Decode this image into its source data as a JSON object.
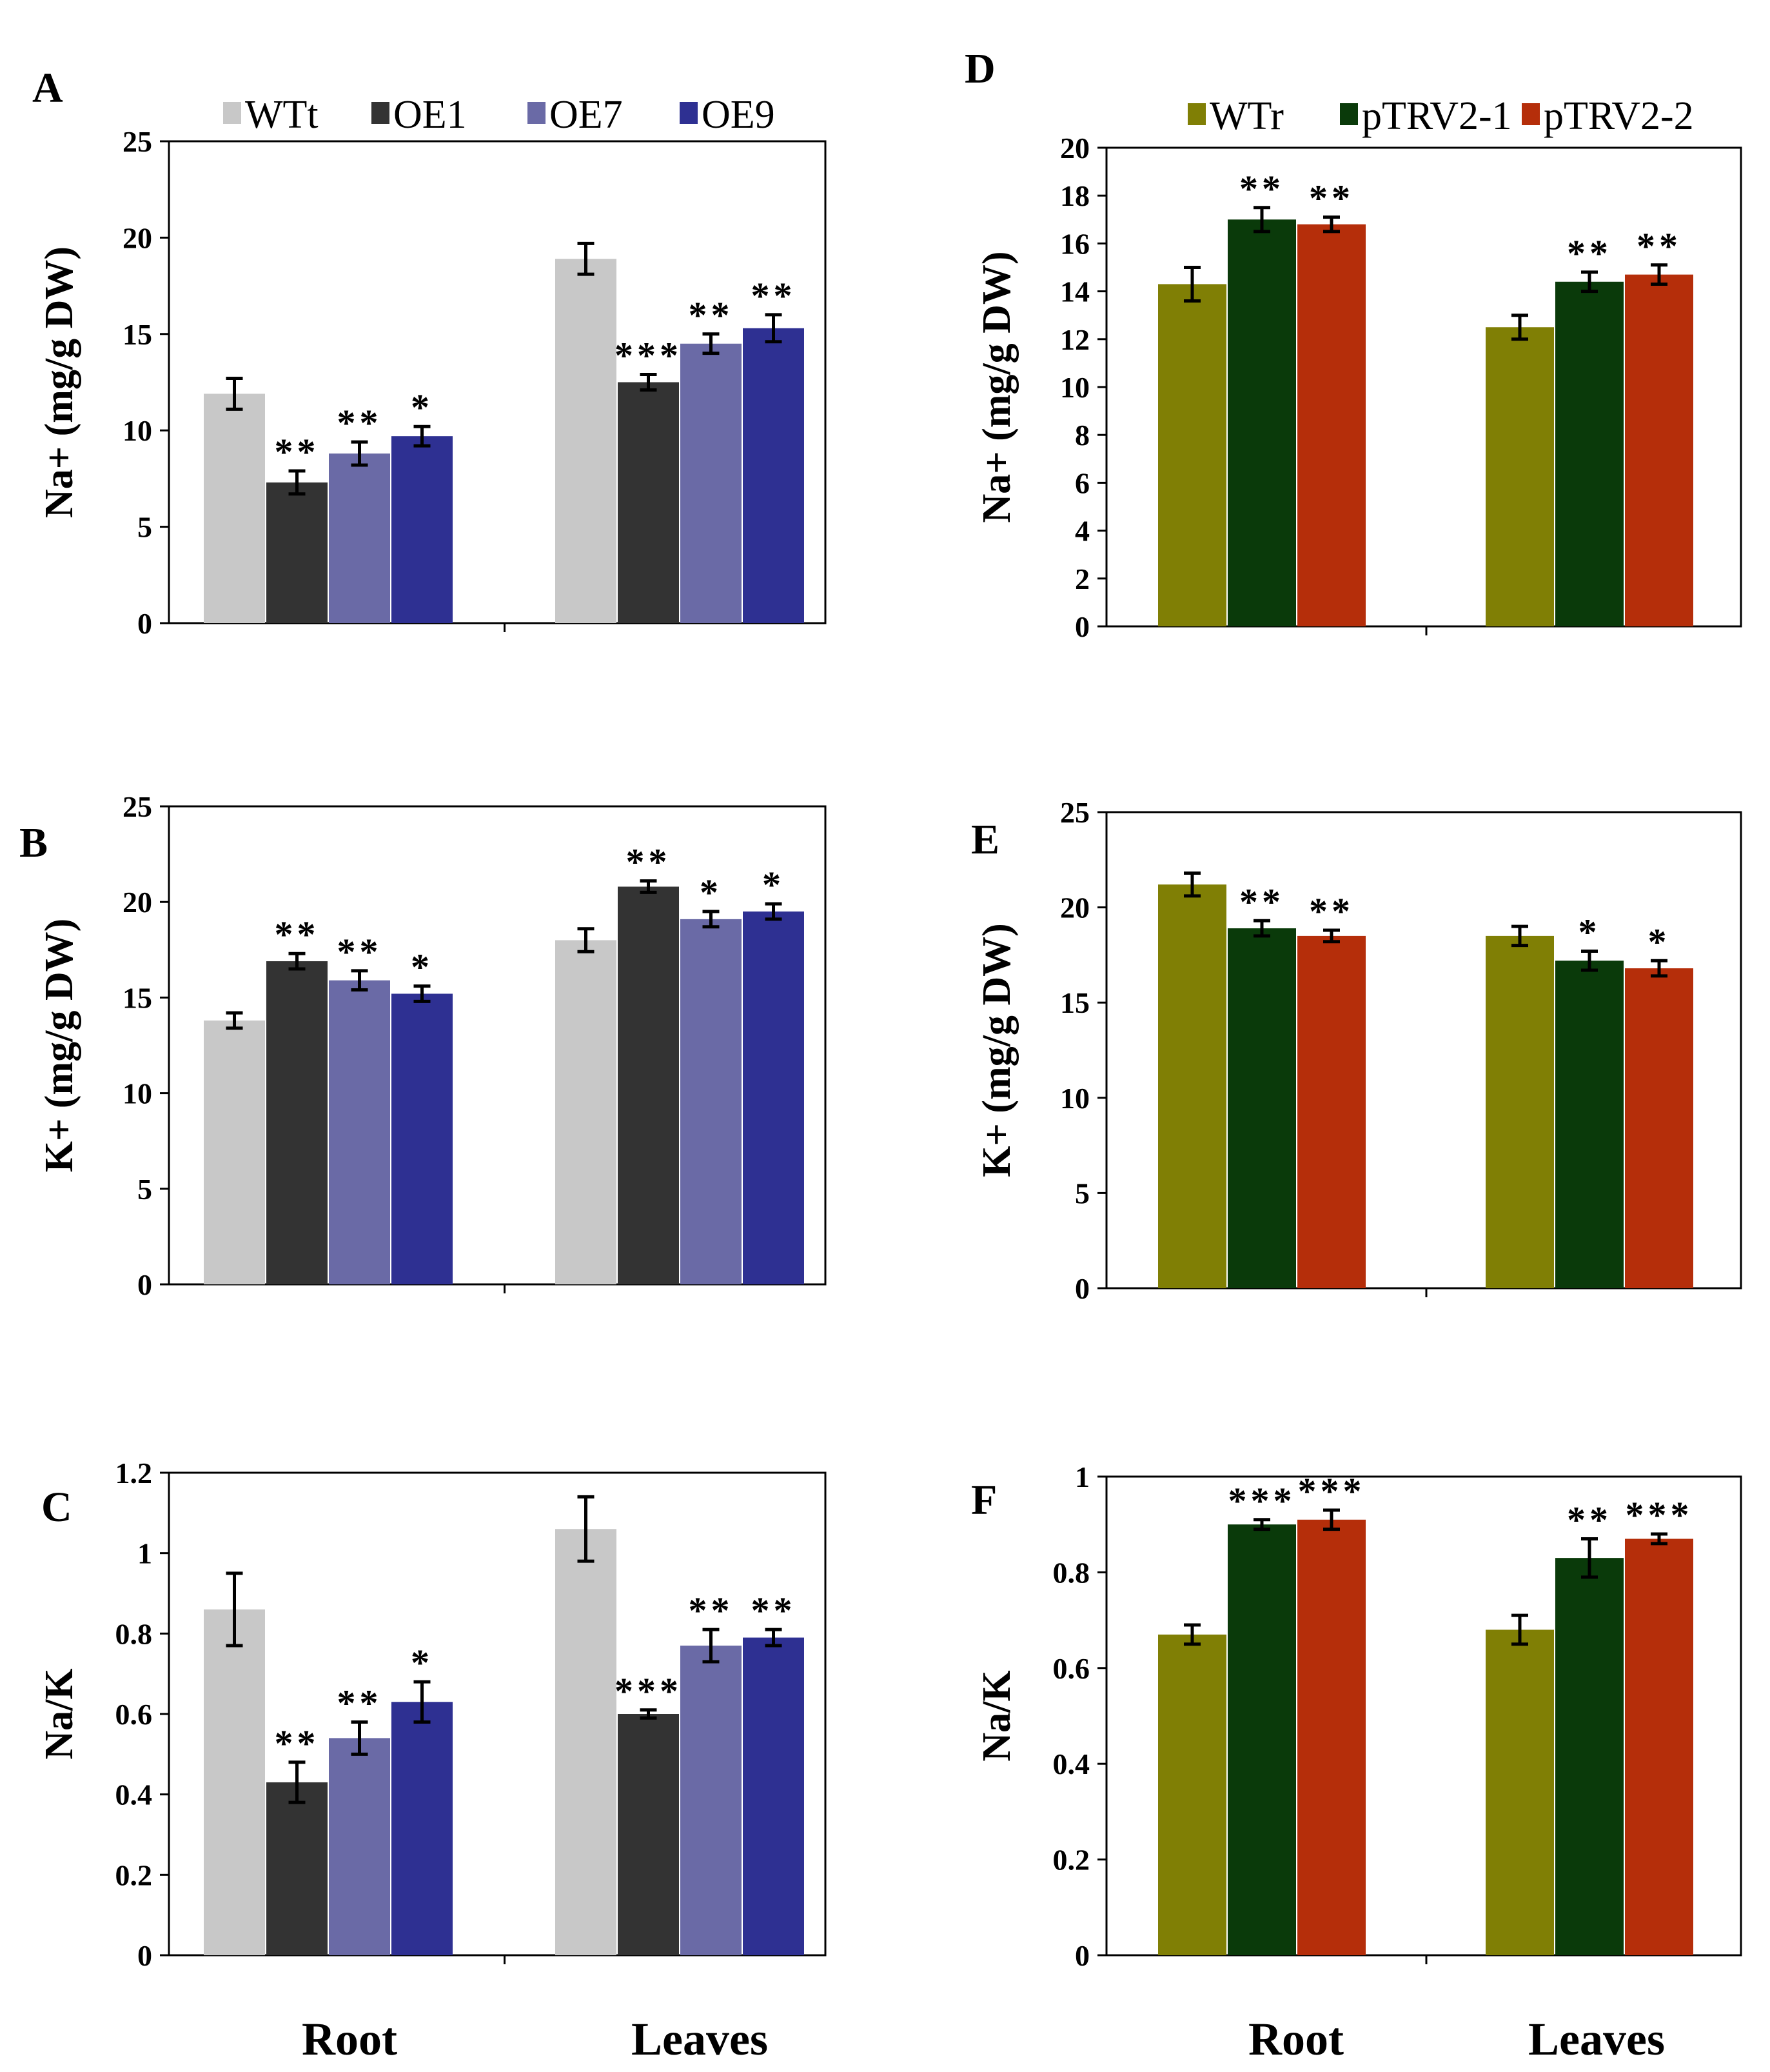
{
  "colors": {
    "WTt": "#c8c8c8",
    "OE1": "#333333",
    "OE7": "#6a6aa6",
    "OE9": "#2e3092",
    "WTr": "#807f05",
    "pTRV2-1": "#0a3a0a",
    "pTRV2-2": "#b52e0a"
  },
  "legend_left": {
    "entries": [
      "WTt",
      "OE1",
      "OE7",
      "OE9"
    ]
  },
  "legend_right": {
    "entries": [
      "WTr",
      "pTRV2-1",
      "pTRV2-2"
    ]
  },
  "x_labels_left": [
    "Root",
    "Leaves"
  ],
  "x_labels_right": [
    "Root",
    "Leaves"
  ],
  "chart_data": [
    {
      "panel": "A",
      "type": "bar",
      "ylabel": "Na+ (mg/g DW)",
      "ylim": [
        0,
        25
      ],
      "yticks": [
        "0",
        "5",
        "10",
        "15",
        "20",
        "25"
      ],
      "categories": [
        "Root",
        "Leaves"
      ],
      "series": [
        {
          "name": "WTt",
          "values": [
            11.9,
            18.9
          ],
          "errors": [
            0.8,
            0.8
          ],
          "stars": [
            "",
            ""
          ]
        },
        {
          "name": "OE1",
          "values": [
            7.3,
            12.5
          ],
          "errors": [
            0.6,
            0.4
          ],
          "stars": [
            "**",
            "***"
          ]
        },
        {
          "name": "OE7",
          "values": [
            8.8,
            14.5
          ],
          "errors": [
            0.6,
            0.5
          ],
          "stars": [
            "**",
            "**"
          ]
        },
        {
          "name": "OE9",
          "values": [
            9.7,
            15.3
          ],
          "errors": [
            0.5,
            0.7
          ],
          "stars": [
            "*",
            "**"
          ]
        }
      ]
    },
    {
      "panel": "B",
      "type": "bar",
      "ylabel": "K+ (mg/g DW)",
      "ylim": [
        0,
        25
      ],
      "yticks": [
        "0",
        "5",
        "10",
        "15",
        "20",
        "25"
      ],
      "categories": [
        "Root",
        "Leaves"
      ],
      "series": [
        {
          "name": "WTt",
          "values": [
            13.8,
            18.0
          ],
          "errors": [
            0.4,
            0.6
          ],
          "stars": [
            "",
            ""
          ]
        },
        {
          "name": "OE1",
          "values": [
            16.9,
            20.8
          ],
          "errors": [
            0.4,
            0.3
          ],
          "stars": [
            "**",
            "**"
          ]
        },
        {
          "name": "OE7",
          "values": [
            15.9,
            19.1
          ],
          "errors": [
            0.5,
            0.4
          ],
          "stars": [
            "**",
            "*"
          ]
        },
        {
          "name": "OE9",
          "values": [
            15.2,
            19.5
          ],
          "errors": [
            0.4,
            0.4
          ],
          "stars": [
            "*",
            "*"
          ]
        }
      ]
    },
    {
      "panel": "C",
      "type": "bar",
      "ylabel": "Na/K",
      "ylim": [
        0,
        1.2
      ],
      "yticks": [
        "0",
        "0.2",
        "0.4",
        "0.6",
        "0.8",
        "1",
        "1.2"
      ],
      "categories": [
        "Root",
        "Leaves"
      ],
      "series": [
        {
          "name": "WTt",
          "values": [
            0.86,
            1.06
          ],
          "errors": [
            0.09,
            0.08
          ],
          "stars": [
            "",
            ""
          ]
        },
        {
          "name": "OE1",
          "values": [
            0.43,
            0.6
          ],
          "errors": [
            0.05,
            0.01
          ],
          "stars": [
            "**",
            "***"
          ]
        },
        {
          "name": "OE7",
          "values": [
            0.54,
            0.77
          ],
          "errors": [
            0.04,
            0.04
          ],
          "stars": [
            "**",
            "**"
          ]
        },
        {
          "name": "OE9",
          "values": [
            0.63,
            0.79
          ],
          "errors": [
            0.05,
            0.02
          ],
          "stars": [
            "*",
            "**"
          ]
        }
      ]
    },
    {
      "panel": "D",
      "type": "bar",
      "ylabel": "Na+ (mg/g DW)",
      "ylim": [
        0,
        20
      ],
      "yticks": [
        "0",
        "2",
        "4",
        "6",
        "8",
        "10",
        "12",
        "14",
        "16",
        "18",
        "20"
      ],
      "categories": [
        "Root",
        "Leaves"
      ],
      "series": [
        {
          "name": "WTr",
          "values": [
            14.3,
            12.5
          ],
          "errors": [
            0.7,
            0.5
          ],
          "stars": [
            "",
            ""
          ]
        },
        {
          "name": "pTRV2-1",
          "values": [
            17.0,
            14.4
          ],
          "errors": [
            0.5,
            0.4
          ],
          "stars": [
            "**",
            "**"
          ]
        },
        {
          "name": "pTRV2-2",
          "values": [
            16.8,
            14.7
          ],
          "errors": [
            0.3,
            0.4
          ],
          "stars": [
            "**",
            "**"
          ]
        }
      ]
    },
    {
      "panel": "E",
      "type": "bar",
      "ylabel": "K+ (mg/g DW)",
      "ylim": [
        0,
        25
      ],
      "yticks": [
        "0",
        "5",
        "10",
        "15",
        "20",
        "25"
      ],
      "categories": [
        "Root",
        "Leaves"
      ],
      "series": [
        {
          "name": "WTr",
          "values": [
            21.2,
            18.5
          ],
          "errors": [
            0.6,
            0.5
          ],
          "stars": [
            "",
            ""
          ]
        },
        {
          "name": "pTRV2-1",
          "values": [
            18.9,
            17.2
          ],
          "errors": [
            0.4,
            0.5
          ],
          "stars": [
            "**",
            "*"
          ]
        },
        {
          "name": "pTRV2-2",
          "values": [
            18.5,
            16.8
          ],
          "errors": [
            0.3,
            0.4
          ],
          "stars": [
            "**",
            "*"
          ]
        }
      ]
    },
    {
      "panel": "F",
      "type": "bar",
      "ylabel": "Na/K",
      "ylim": [
        0,
        1
      ],
      "yticks": [
        "0",
        "0.2",
        "0.4",
        "0.6",
        "0.8",
        "1"
      ],
      "categories": [
        "Root",
        "Leaves"
      ],
      "series": [
        {
          "name": "WTr",
          "values": [
            0.67,
            0.68
          ],
          "errors": [
            0.02,
            0.03
          ],
          "stars": [
            "",
            ""
          ]
        },
        {
          "name": "pTRV2-1",
          "values": [
            0.9,
            0.83
          ],
          "errors": [
            0.01,
            0.04
          ],
          "stars": [
            "***",
            "**"
          ]
        },
        {
          "name": "pTRV2-2",
          "values": [
            0.91,
            0.87
          ],
          "errors": [
            0.02,
            0.01
          ],
          "stars": [
            "***",
            "***"
          ]
        }
      ]
    }
  ]
}
